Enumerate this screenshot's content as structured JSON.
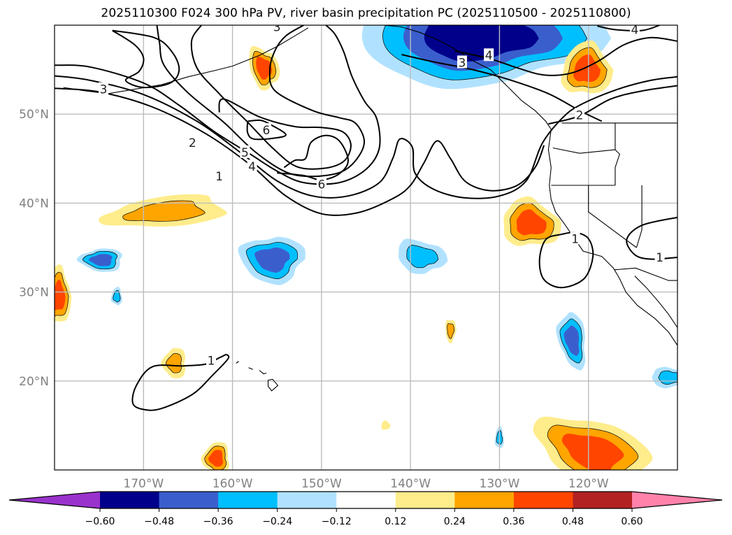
{
  "chart_data": {
    "type": "contour-map",
    "title": "2025110300 F024 300 hPa PV, river basin precipitation PC (2025110500 - 2025110800)",
    "projection": "PlateCarree",
    "lon_range": [
      -180,
      -110
    ],
    "lat_range": [
      10,
      60
    ],
    "grid": true,
    "x_ticks": [
      {
        "value": -170,
        "label": "170°W"
      },
      {
        "value": -160,
        "label": "160°W"
      },
      {
        "value": -150,
        "label": "150°W"
      },
      {
        "value": -140,
        "label": "140°W"
      },
      {
        "value": -130,
        "label": "130°W"
      },
      {
        "value": -120,
        "label": "120°W"
      }
    ],
    "y_ticks": [
      {
        "value": 50,
        "label": "50°N"
      },
      {
        "value": 40,
        "label": "40°N"
      },
      {
        "value": 30,
        "label": "30°N"
      },
      {
        "value": 20,
        "label": "20°N"
      }
    ],
    "colorbar": {
      "orientation": "horizontal",
      "location": "bottom",
      "extend": "both",
      "levels": [
        -0.6,
        -0.48,
        -0.36,
        -0.24,
        -0.12,
        0.12,
        0.24,
        0.36,
        0.48,
        0.6
      ],
      "tick_labels": [
        "−0.60",
        "−0.48",
        "−0.36",
        "−0.24",
        "−0.12",
        "0.12",
        "0.24",
        "0.36",
        "0.48",
        "0.60"
      ],
      "colors": [
        "#9932cc",
        "#00008b",
        "#3a5fcd",
        "#00bfff",
        "#b0e2ff",
        "#ffffff",
        "#ffec8b",
        "#ffa500",
        "#ff4500",
        "#b22222",
        "#ff82ab"
      ]
    },
    "pv_contours": {
      "levels": [
        1,
        2,
        3,
        4,
        5,
        6
      ],
      "labels_shown": [
        "1",
        "2",
        "3",
        "4",
        "5",
        "6"
      ],
      "lines": [
        {
          "level": 1,
          "label_at": [
            -161.5,
            43
          ],
          "points": [
            [
              -180,
              52.9
            ],
            [
              -175,
              52.5
            ],
            [
              -169,
              50.8
            ],
            [
              -163,
              47.8
            ],
            [
              -158,
              44.3
            ],
            [
              -154,
              40.8
            ],
            [
              -150,
              38.8
            ],
            [
              -146,
              38.9
            ],
            [
              -142,
              40.5
            ],
            [
              -140,
              42
            ],
            [
              -138.5,
              44.5
            ],
            [
              -137,
              47
            ],
            [
              -135.5,
              45
            ],
            [
              -133.8,
              42.4
            ],
            [
              -131,
              41.4
            ],
            [
              -128,
              42
            ],
            [
              -126,
              44
            ],
            [
              -125,
              46.5
            ]
          ]
        },
        {
          "level": 2,
          "label_at": [
            -164.5,
            46.8
          ],
          "points": [
            [
              -180,
              54.3
            ],
            [
              -176,
              53.8
            ],
            [
              -170,
              52.2
            ],
            [
              -164,
              49.2
            ],
            [
              -159,
              45.6
            ],
            [
              -155,
              42.5
            ],
            [
              -151,
              40.8
            ],
            [
              -147,
              40.8
            ],
            [
              -143.5,
              42.3
            ],
            [
              -142,
              45
            ],
            [
              -141.2,
              47.2
            ],
            [
              -139.8,
              46.3
            ],
            [
              -139.5,
              43.4
            ],
            [
              -137.5,
              41.6
            ],
            [
              -134,
              40.6
            ],
            [
              -130,
              40.8
            ],
            [
              -127,
              42.5
            ],
            [
              -125.2,
              46.7
            ],
            [
              -123,
              49.5
            ],
            [
              -121,
              51
            ],
            [
              -117,
              52.7
            ],
            [
              -113,
              53.8
            ],
            [
              -110,
              54.2
            ]
          ]
        },
        {
          "level": 3,
          "label_at": [
            -174.5,
            52.8
          ],
          "points": [
            [
              -180,
              55.5
            ],
            [
              -176,
              55.3
            ],
            [
              -170,
              53.5
            ],
            [
              -166,
              51
            ],
            [
              -162,
              48
            ],
            [
              -158,
              45.5
            ],
            [
              -155,
              43.6
            ],
            [
              -152,
              42.3
            ],
            [
              -148,
              42.3
            ],
            [
              -145,
              43.8
            ],
            [
              -143.5,
              46.2
            ],
            [
              -143.8,
              49.5
            ],
            [
              -145.2,
              51.5
            ],
            [
              -146.6,
              54.3
            ],
            [
              -147.5,
              57
            ],
            [
              -148.5,
              59
            ],
            [
              -149.5,
              60
            ]
          ]
        },
        {
          "level": 4,
          "label_at": [
            -157.8,
            44.1
          ],
          "points": [
            [
              -168.5,
              60
            ],
            [
              -168.2,
              58
            ],
            [
              -167.7,
              55.5
            ],
            [
              -165,
              52.4
            ],
            [
              -161,
              49.1
            ],
            [
              -157.5,
              45.8
            ],
            [
              -154,
              43.5
            ],
            [
              -151,
              43
            ],
            [
              -147.8,
              43.5
            ],
            [
              -146,
              45
            ],
            [
              -145.2,
              47
            ],
            [
              -146.2,
              49
            ],
            [
              -148,
              49.6
            ],
            [
              -151,
              50.4
            ],
            [
              -155.2,
              52.6
            ],
            [
              -155.8,
              55
            ],
            [
              -155.2,
              57.2
            ],
            [
              -154,
              58.8
            ],
            [
              -152,
              60
            ]
          ]
        },
        {
          "level": 5,
          "label_at": [
            -158.6,
            45.7
          ],
          "points": [
            [
              -163.5,
              60
            ],
            [
              -164.6,
              58.2
            ],
            [
              -164,
              55.2
            ],
            [
              -161.5,
              52.3
            ],
            [
              -158.5,
              49.3
            ],
            [
              -155.5,
              46.2
            ],
            [
              -152.8,
              44.1
            ],
            [
              -149.8,
              43.9
            ],
            [
              -147.5,
              44.7
            ],
            [
              -146.7,
              46.5
            ],
            [
              -147.6,
              48
            ],
            [
              -150,
              48.5
            ],
            [
              -153,
              48.6
            ],
            [
              -157,
              49.7
            ],
            [
              -161,
              51.7
            ],
            [
              -161.5,
              50.2
            ]
          ]
        },
        {
          "level": 6,
          "label_at": [
            -150,
            42.1
          ],
          "points": [
            [
              -155,
              43.4
            ],
            [
              -152,
              43.1
            ],
            [
              -150,
              42.6
            ],
            [
              -148,
              43.3
            ],
            [
              -147,
              44.8
            ],
            [
              -148,
              47
            ],
            [
              -149.6,
              47.6
            ],
            [
              -151.2,
              46.8
            ],
            [
              -151.8,
              45
            ],
            [
              -153,
              44.8
            ],
            [
              -154.2,
              44
            ]
          ]
        },
        {
          "level": 6,
          "label_at": [
            -156.2,
            48.2
          ],
          "points": [
            [
              -158.3,
              49.2
            ],
            [
              -156.8,
              49.3
            ],
            [
              -155.5,
              48.7
            ],
            [
              -154,
              47.7
            ],
            [
              -155.3,
              47.3
            ],
            [
              -157.6,
              47.2
            ],
            [
              -158.3,
              47.9
            ],
            [
              -158.3,
              49.2
            ]
          ]
        },
        {
          "level": 3,
          "label_at": [
            -155,
            59.8
          ],
          "points": [
            [
              -173.5,
              59.4
            ],
            [
              -171,
              57.8
            ],
            [
              -170,
              56.3
            ],
            [
              -170.5,
              54.8
            ],
            [
              -172,
              53.8
            ],
            [
              -170,
              53
            ],
            [
              -167,
              53.5
            ],
            [
              -166,
              55
            ],
            [
              -166.8,
              57
            ],
            [
              -168.8,
              58.6
            ],
            [
              -173.5,
              59.4
            ]
          ]
        },
        {
          "level": 3,
          "label_at": [
            -134.2,
            55.8
          ],
          "points": [
            [
              -141,
              56.7
            ],
            [
              -137.5,
              55.9
            ],
            [
              -133,
              55
            ],
            [
              -129,
              53.9
            ],
            [
              -124.5,
              52.3
            ],
            [
              -121,
              50.4
            ],
            [
              -118.5,
              49.2
            ]
          ]
        },
        {
          "level": 4,
          "label_at": [
            -131.2,
            56.6
          ],
          "points": [
            [
              -135,
              57.1
            ],
            [
              -131,
              56.2
            ],
            [
              -128,
              55.2
            ],
            [
              -125,
              54.4
            ],
            [
              -122,
              54.6
            ],
            [
              -119,
              55.9
            ],
            [
              -116,
              57.8
            ],
            [
              -113,
              58.6
            ],
            [
              -110,
              58.2
            ]
          ]
        },
        {
          "level": 2,
          "label_at": [
            -121,
            49.9
          ],
          "points": [
            [
              -124.5,
              48.9
            ],
            [
              -121,
              49.8
            ],
            [
              -117.5,
              51.7
            ],
            [
              -114,
              52.6
            ],
            [
              -110,
              53.2
            ]
          ]
        },
        {
          "level": 1,
          "label_at": [
            -121.5,
            36
          ],
          "points": [
            [
              -123,
              36.5
            ],
            [
              -121.5,
              36.7
            ],
            [
              -120,
              36
            ],
            [
              -119.5,
              34
            ],
            [
              -120.5,
              31.5
            ],
            [
              -123,
              30.5
            ],
            [
              -125,
              31.4
            ],
            [
              -125.5,
              33.6
            ],
            [
              -124.8,
              35.9
            ],
            [
              -123,
              36.5
            ]
          ]
        },
        {
          "level": 1,
          "label_at": [
            -112,
            33.9
          ],
          "points": [
            [
              -110,
              38.4
            ],
            [
              -114,
              37.5
            ],
            [
              -115.7,
              35.9
            ],
            [
              -114.8,
              34.2
            ],
            [
              -113,
              33.7
            ],
            [
              -110,
              33.9
            ]
          ]
        },
        {
          "level": 1,
          "label_at": [
            -162.4,
            22.3
          ],
          "points": [
            [
              -160.7,
              23
            ],
            [
              -161.5,
              22.6
            ],
            [
              -163,
              21.9
            ],
            [
              -165.5,
              21.7
            ],
            [
              -169,
              21.6
            ],
            [
              -170.8,
              19.5
            ],
            [
              -171.2,
              17.5
            ],
            [
              -170,
              16.8
            ],
            [
              -168,
              16.9
            ],
            [
              -164.5,
              18.5
            ],
            [
              -162.2,
              20.7
            ],
            [
              -160.5,
              22.5
            ],
            [
              -160.7,
              23
            ]
          ]
        },
        {
          "level": 4,
          "label_at": [
            -114.8,
            59.5
          ],
          "points": [
            [
              -119,
              59.9
            ],
            [
              -117,
              59.5
            ],
            [
              -114,
              59.4
            ],
            [
              -112,
              60
            ]
          ]
        }
      ]
    },
    "precip_regions": [
      {
        "name": "gulf-of-alaska-negative",
        "value": -0.48,
        "center": [
          -132.5,
          58.5
        ]
      },
      {
        "name": "alaska-peninsula-positive",
        "value": 0.36,
        "center": [
          -156.5,
          55.2
        ]
      },
      {
        "name": "bc-interior-positive",
        "value": 0.36,
        "center": [
          -120.2,
          55
        ]
      },
      {
        "name": "west-pacific-positive",
        "value": 0.3,
        "center": [
          -167.5,
          39
        ]
      },
      {
        "name": "subtropic-negative-a",
        "value": -0.36,
        "center": [
          -174.7,
          33.6
        ]
      },
      {
        "name": "subtropic-negative-b",
        "value": -0.4,
        "center": [
          -155.5,
          33.7
        ]
      },
      {
        "name": "subtropic-negative-c",
        "value": -0.3,
        "center": [
          -138.8,
          34
        ]
      },
      {
        "name": "california-offshore-positive",
        "value": 0.38,
        "center": [
          -126.5,
          37.7
        ]
      },
      {
        "name": "west-edge-positive",
        "value": 0.4,
        "center": [
          -179.5,
          29.5
        ]
      },
      {
        "name": "small-negative",
        "value": -0.24,
        "center": [
          -173,
          29.5
        ]
      },
      {
        "name": "hawaii-west-positive",
        "value": 0.3,
        "center": [
          -166.5,
          22
        ]
      },
      {
        "name": "mexico-offshore-negative",
        "value": -0.38,
        "center": [
          -121.8,
          24.6
        ]
      },
      {
        "name": "tiny-positive",
        "value": 0.26,
        "center": [
          -135.5,
          25.7
        ]
      },
      {
        "name": "baja-tip-negative",
        "value": -0.3,
        "center": [
          -110.8,
          20.4
        ]
      },
      {
        "name": "tiny-positive-b",
        "value": 0.2,
        "center": [
          -142.8,
          15
        ]
      },
      {
        "name": "tiny-negative-b",
        "value": -0.24,
        "center": [
          -130,
          13.6
        ]
      },
      {
        "name": "south-positive-a",
        "value": 0.4,
        "center": [
          -161.8,
          11.3
        ]
      },
      {
        "name": "south-positive-b",
        "value": 0.45,
        "center": [
          -119.5,
          12
        ]
      }
    ]
  }
}
